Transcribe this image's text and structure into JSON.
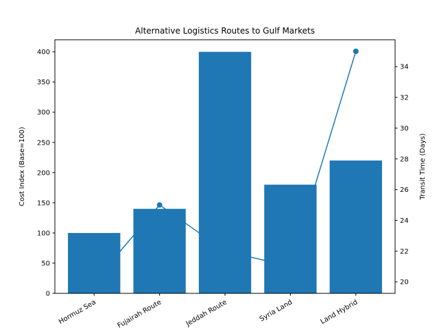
{
  "chart_data": {
    "type": "bar",
    "title": "Alternative Logistics Routes to Gulf Markets",
    "categories": [
      "Hormuz Sea",
      "Fujairah Route",
      "Jeddah Route",
      "Syria Land",
      "Land Hybrid"
    ],
    "xlabel": "",
    "ylabel": "Cost Index (Base=100)",
    "y2label": "Transit Time (Days)",
    "ylim": [
      0,
      420
    ],
    "y2lim": [
      19.25,
      35.75
    ],
    "yticks": [
      0,
      50,
      100,
      150,
      200,
      250,
      300,
      350,
      400
    ],
    "y2ticks": [
      20,
      22,
      24,
      26,
      28,
      30,
      32,
      34
    ],
    "grid": false,
    "series": [
      {
        "name": "",
        "kind": "bar",
        "axis": "left",
        "color": "#1f77b4",
        "values": [
          100,
          140,
          400,
          180,
          220
        ]
      },
      {
        "name": "",
        "kind": "line",
        "axis": "right",
        "color": "#1f77b4",
        "markers": "circle",
        "values": [
          20,
          25,
          22,
          21,
          35
        ]
      }
    ]
  }
}
